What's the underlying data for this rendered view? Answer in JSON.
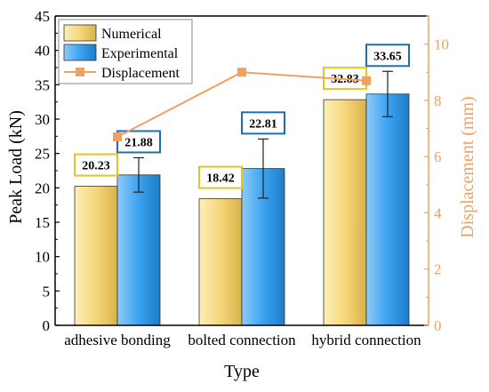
{
  "chart_data": {
    "type": "bar",
    "xlabel": "Type",
    "ylabel": "Peak Load (kN)",
    "y2label": "Displacement (mm)",
    "categories": [
      "adhesive bonding",
      "bolted connection",
      "hybrid connection"
    ],
    "ylim": [
      0,
      45
    ],
    "y2lim": [
      0,
      11
    ],
    "yticks": [
      0,
      5,
      10,
      15,
      20,
      25,
      30,
      35,
      40,
      45
    ],
    "y2ticks": [
      0,
      2,
      4,
      6,
      8,
      10
    ],
    "legend_position": "top-left",
    "series": [
      {
        "name": "Numerical",
        "type": "bar",
        "values": [
          20.23,
          18.42,
          32.83
        ],
        "labels": [
          "20.23",
          "18.42",
          "32.83"
        ],
        "color": "#F5D77A",
        "label_border": "#E8C420"
      },
      {
        "name": "Experimental",
        "type": "bar",
        "values": [
          21.88,
          22.81,
          33.65
        ],
        "labels": [
          "21.88",
          "22.81",
          "33.65"
        ],
        "error": [
          2.5,
          4.3,
          3.3
        ],
        "color": "#3BA3F0",
        "label_border": "#1E6FB0"
      },
      {
        "name": "Displacement",
        "type": "line",
        "axis": "right",
        "values": [
          6.7,
          9.0,
          8.7
        ],
        "color": "#F0A060"
      }
    ]
  }
}
